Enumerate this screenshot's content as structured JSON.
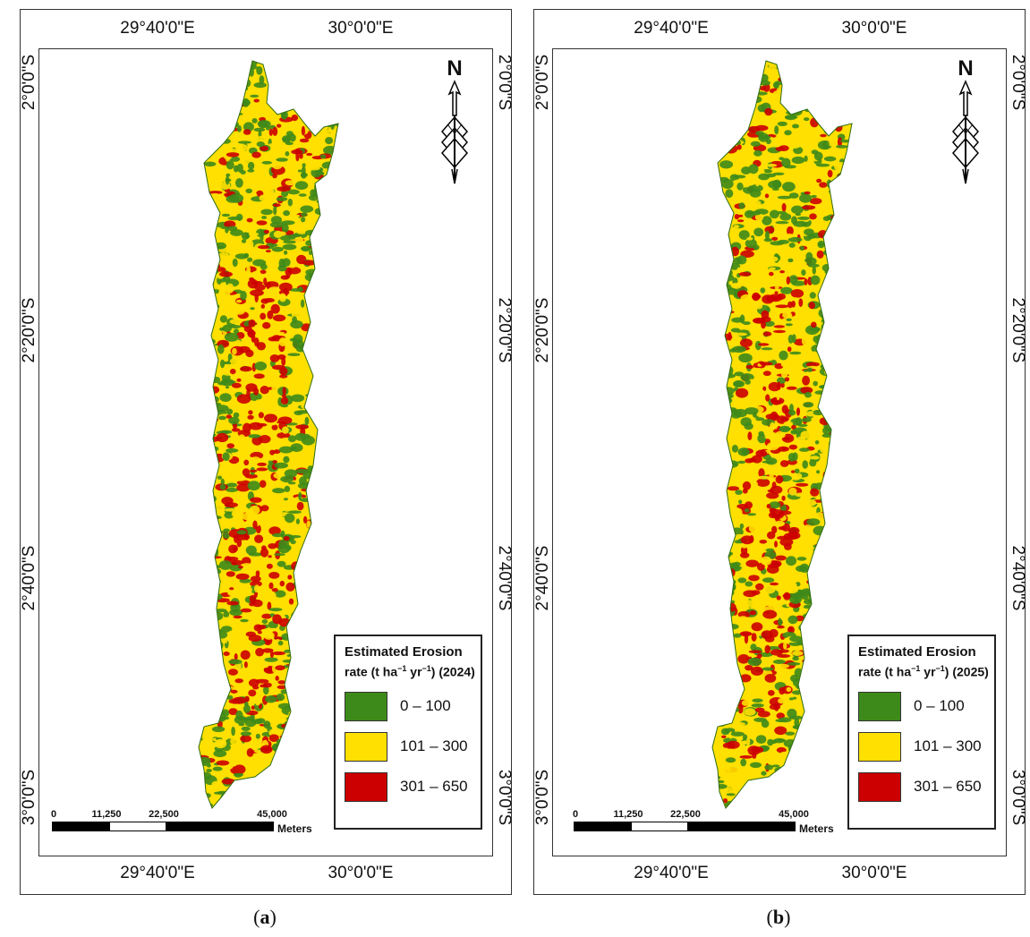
{
  "colors": {
    "low": "#3d8a1a",
    "mid": "#ffe000",
    "high": "#cc0000"
  },
  "coords": {
    "top_left": "29°40'0\"E",
    "top_right": "30°0'0\"E",
    "lat_1": "2°0'0\"S",
    "lat_2": "2°20'0\"S",
    "lat_3": "2°40'0\"S",
    "lat_4": "3°0'0\"S"
  },
  "north_label": "N",
  "scale": {
    "t0": "0",
    "t1": "11,250",
    "t2": "22,500",
    "t3": "45,000",
    "unit": "Meters"
  },
  "legend": {
    "title": "Estimated Erosion",
    "classes": [
      {
        "label": "0 – 100",
        "color": "low"
      },
      {
        "label": "101 – 300",
        "color": "mid"
      },
      {
        "label": "301 – 650",
        "color": "high"
      }
    ]
  },
  "panels": [
    {
      "caption_open": "(",
      "caption_letter": "a",
      "caption_close": ")",
      "year": "(2024)"
    },
    {
      "caption_open": "(",
      "caption_letter": "b",
      "caption_close": ")",
      "year": "(2025)"
    }
  ]
}
